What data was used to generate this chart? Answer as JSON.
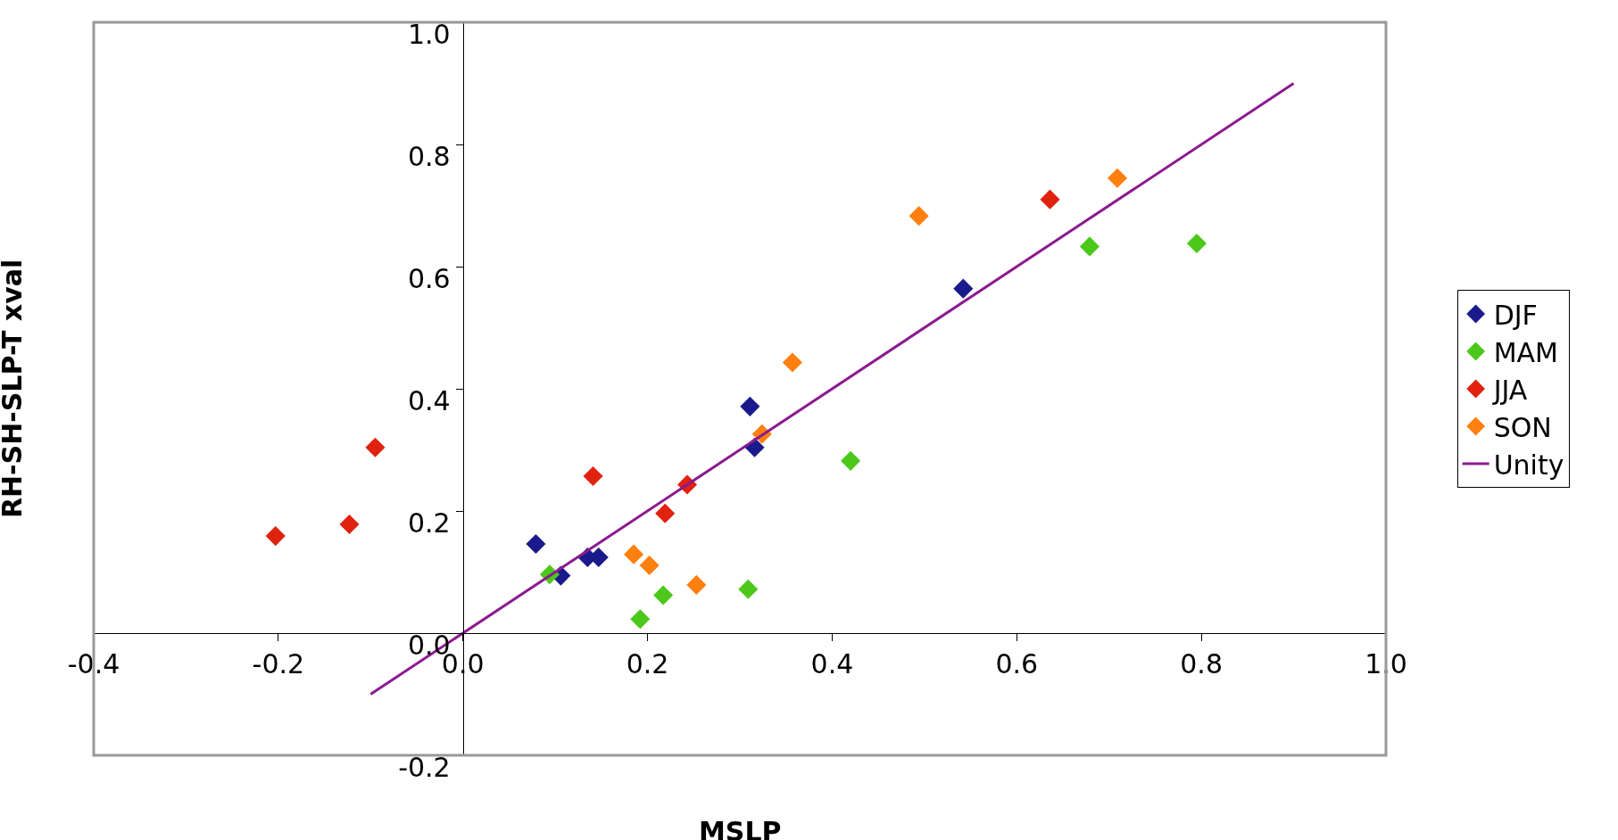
{
  "chart_data": {
    "type": "scatter",
    "xlabel": "MSLP",
    "ylabel": "RH-SH-SLP-T xval",
    "xlim": [
      -0.4,
      1.0
    ],
    "xticks": [
      -0.4,
      -0.2,
      {
        "value": 0,
        "label": "0.0"
      },
      0.2,
      0.4,
      0.6,
      0.8,
      {
        "value": 1,
        "label": "1.0"
      }
    ],
    "ylim": [
      -0.2,
      1.0
    ],
    "yticks": [
      -0.2,
      {
        "value": 0,
        "label": "0.0"
      },
      0.2,
      0.4,
      0.6,
      0.8,
      {
        "value": 1,
        "label": "1.0"
      }
    ],
    "legend": "right",
    "marker": "diamond",
    "series": [
      {
        "name": "DJF",
        "color": "#1a1a8c",
        "x": [
          0.079,
          0.106,
          0.135,
          0.147,
          0.311,
          0.316,
          0.542
        ],
        "values": [
          0.146,
          0.094,
          0.124,
          0.124,
          0.371,
          0.304,
          0.564
        ]
      },
      {
        "name": "MAM",
        "color": "#4cc81a",
        "x": [
          0.094,
          0.192,
          0.217,
          0.309,
          0.42,
          0.679,
          0.795
        ],
        "values": [
          0.096,
          0.023,
          0.062,
          0.072,
          0.282,
          0.633,
          0.638
        ]
      },
      {
        "name": "JJA",
        "color": "#e0220f",
        "x": [
          -0.203,
          -0.123,
          -0.095,
          0.141,
          0.219,
          0.243,
          0.636
        ],
        "values": [
          0.159,
          0.178,
          0.304,
          0.257,
          0.196,
          0.243,
          0.71
        ]
      },
      {
        "name": "SON",
        "color": "#ff7f0f",
        "x": [
          0.185,
          0.202,
          0.253,
          0.324,
          0.357,
          0.494,
          0.709
        ],
        "values": [
          0.129,
          0.111,
          0.079,
          0.326,
          0.443,
          0.683,
          0.745
        ]
      },
      {
        "name": "Unity",
        "type": "line",
        "color": "#8b1a8f",
        "marker": "none",
        "line_style": "solid",
        "x": [
          -0.1,
          0.9
        ],
        "values": [
          -0.1,
          0.9
        ]
      }
    ]
  }
}
